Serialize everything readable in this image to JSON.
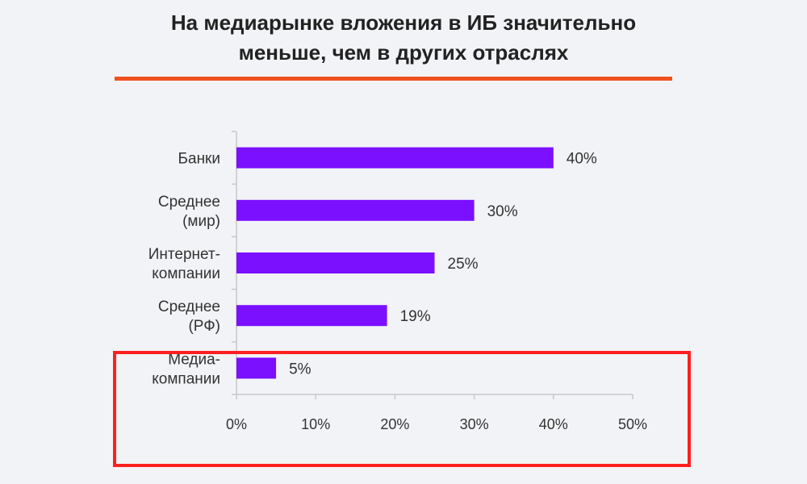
{
  "title": {
    "line1": "На медиарынке вложения в ИБ значительно",
    "line2": "меньше, чем в других отраслях"
  },
  "colors": {
    "bar": "#7b0fff",
    "accent_rule": "#f0511e",
    "highlight": "#ff1f1f",
    "axis": "#c8c8c8",
    "text": "#333333"
  },
  "chart_data": {
    "type": "bar",
    "orientation": "horizontal",
    "title": "",
    "categories": [
      [
        "Банки"
      ],
      [
        "Среднее",
        "(мир)"
      ],
      [
        "Интернет-",
        "компании"
      ],
      [
        "Среднее",
        "(РФ)"
      ],
      [
        "Медиа-",
        "компании"
      ]
    ],
    "values": [
      40,
      30,
      25,
      19,
      5
    ],
    "value_labels": [
      "40%",
      "30%",
      "25%",
      "19%",
      "5%"
    ],
    "xlim": [
      0,
      50
    ],
    "xticks": [
      0,
      10,
      20,
      30,
      40,
      50
    ],
    "xtick_labels": [
      "0%",
      "10%",
      "20%",
      "30%",
      "40%",
      "50%"
    ],
    "xlabel": "",
    "ylabel": "",
    "grid": false,
    "legend": "none",
    "highlighted_category_index": 4
  }
}
